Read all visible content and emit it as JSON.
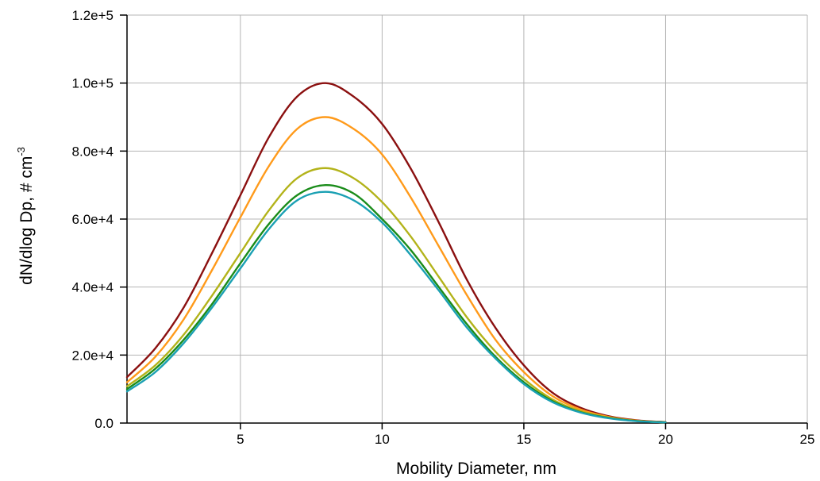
{
  "chart_data": {
    "type": "line",
    "xlabel": "Mobility Diameter, nm",
    "ylabel": "dN/dlog Dp, # cm",
    "ylabel_superscript": "-3",
    "xlim": [
      1,
      25
    ],
    "ylim": [
      0,
      120000
    ],
    "x_ticks": [
      5,
      10,
      15,
      20,
      25
    ],
    "x_tick_labels": [
      "5",
      "10",
      "15",
      "20",
      "25"
    ],
    "y_ticks": [
      0,
      20000,
      40000,
      60000,
      80000,
      100000,
      120000
    ],
    "y_tick_labels": [
      "0.0",
      "2.0e+4",
      "4.0e+4",
      "6.0e+4",
      "8.0e+4",
      "1.0e+5",
      "1.2e+5"
    ],
    "grid": true,
    "legend": "none",
    "x": [
      1,
      2,
      3,
      4,
      5,
      6,
      7,
      8,
      9,
      10,
      11,
      12,
      13,
      14,
      15,
      16,
      17,
      18,
      19,
      20
    ],
    "series": [
      {
        "color": "#8B1010",
        "values": [
          13500,
          22000,
          34000,
          50000,
          67000,
          84000,
          96000,
          100000,
          96000,
          88000,
          75000,
          59000,
          42000,
          28000,
          17000,
          9000,
          4500,
          2000,
          800,
          300
        ]
      },
      {
        "color": "#FF9A1A",
        "values": [
          12000,
          19500,
          30500,
          45000,
          60500,
          75500,
          86500,
          90000,
          86500,
          79000,
          66500,
          52000,
          37500,
          24500,
          15000,
          8000,
          4000,
          1800,
          700,
          250
        ]
      },
      {
        "color": "#B3B31A",
        "values": [
          10800,
          17000,
          26000,
          37500,
          50000,
          62500,
          72000,
          75000,
          72000,
          65000,
          55000,
          43000,
          31000,
          21000,
          13000,
          7000,
          3500,
          1600,
          600,
          200
        ]
      },
      {
        "color": "#1A8C1A",
        "values": [
          10000,
          16000,
          24500,
          35000,
          47000,
          58500,
          67000,
          70000,
          67500,
          60000,
          51000,
          40000,
          29000,
          19500,
          12000,
          6500,
          3200,
          1500,
          600,
          200
        ]
      },
      {
        "color": "#1AA0B3",
        "values": [
          9300,
          15000,
          23500,
          34000,
          45500,
          57000,
          65500,
          68000,
          65500,
          59000,
          49500,
          39000,
          28000,
          19000,
          11500,
          6200,
          3100,
          1400,
          550,
          200
        ]
      }
    ]
  }
}
